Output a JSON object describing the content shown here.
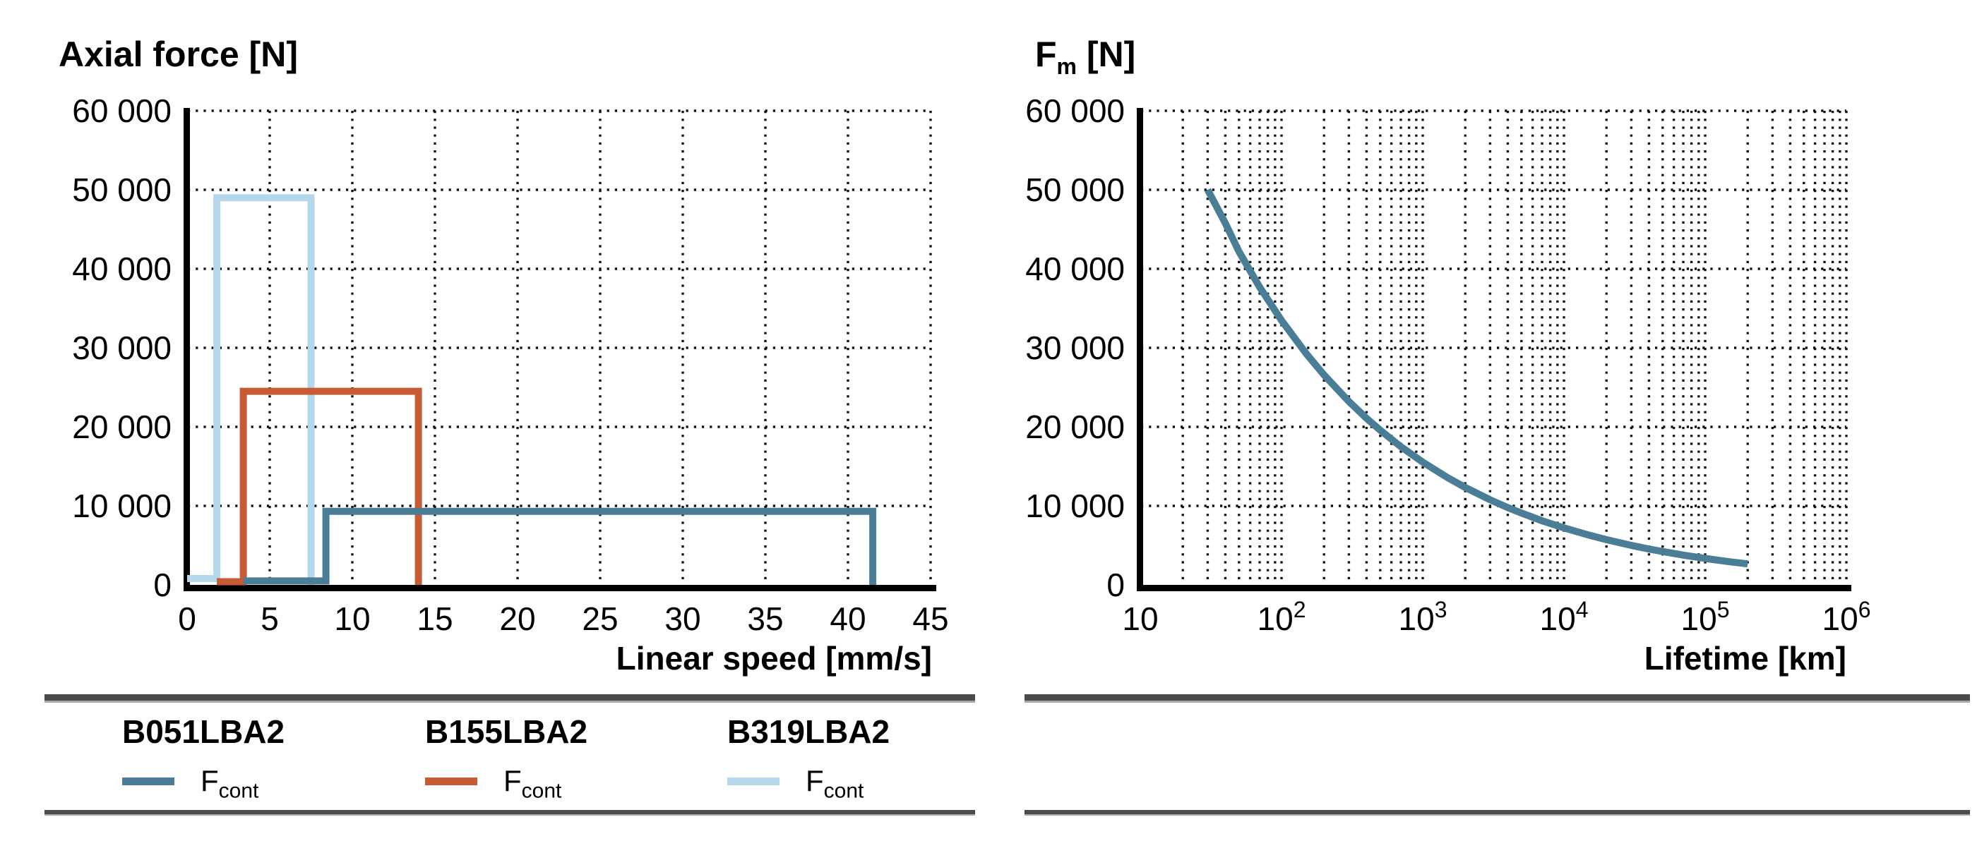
{
  "chart_data": [
    {
      "type": "line",
      "title": "Axial force [N]",
      "x_axis": {
        "scale": "linear",
        "min": 0,
        "max": 45,
        "label": "Linear speed [mm/s]",
        "grid": true,
        "ticks": [
          {
            "v": 0,
            "label": "0"
          },
          {
            "v": 5,
            "label": "5"
          },
          {
            "v": 10,
            "label": "10"
          },
          {
            "v": 15,
            "label": "15"
          },
          {
            "v": 20,
            "label": "20"
          },
          {
            "v": 25,
            "label": "25"
          },
          {
            "v": 30,
            "label": "30"
          },
          {
            "v": 35,
            "label": "35"
          },
          {
            "v": 40,
            "label": "40"
          },
          {
            "v": 45,
            "label": "45"
          }
        ]
      },
      "y_axis": {
        "min": 0,
        "max": 60000,
        "grid": true,
        "ticks": [
          {
            "v": 0,
            "label": "0"
          },
          {
            "v": 10000,
            "label": "10 000"
          },
          {
            "v": 20000,
            "label": "20 000"
          },
          {
            "v": 30000,
            "label": "30 000"
          },
          {
            "v": 40000,
            "label": "40 000"
          },
          {
            "v": 50000,
            "label": "50 000"
          },
          {
            "v": 60000,
            "label": "60 000"
          }
        ]
      },
      "series": [
        {
          "name": "B319LBA2",
          "quantity": "F_cont",
          "color": "#B5D7EB",
          "points": [
            [
              0,
              800
            ],
            [
              1.8,
              800
            ],
            [
              1.8,
              49000
            ],
            [
              7.5,
              49000
            ],
            [
              7.5,
              0
            ]
          ]
        },
        {
          "name": "B155LBA2",
          "quantity": "F_cont",
          "color": "#C75B35",
          "points": [
            [
              1.8,
              400
            ],
            [
              3.4,
              400
            ],
            [
              3.4,
              24500
            ],
            [
              14,
              24500
            ],
            [
              14,
              0
            ]
          ]
        },
        {
          "name": "B051LBA2",
          "quantity": "F_cont",
          "color": "#4A7E96",
          "points": [
            [
              3.4,
              500
            ],
            [
              8.4,
              500
            ],
            [
              8.4,
              9300
            ],
            [
              41.5,
              9300
            ],
            [
              41.5,
              0
            ]
          ]
        }
      ]
    },
    {
      "type": "line",
      "title_main": "F",
      "title_sub": "m",
      "title_unit": " [N]",
      "x_axis": {
        "scale": "log",
        "min": 10,
        "max": 1000000,
        "label": "Lifetime [km]",
        "grid": true,
        "ticks": [
          {
            "exp": 1,
            "base": "10",
            "sup": ""
          },
          {
            "exp": 2,
            "base": "10",
            "sup": "2"
          },
          {
            "exp": 3,
            "base": "10",
            "sup": "3"
          },
          {
            "exp": 4,
            "base": "10",
            "sup": "4"
          },
          {
            "exp": 5,
            "base": "10",
            "sup": "5"
          },
          {
            "exp": 6,
            "base": "10",
            "sup": "6"
          }
        ]
      },
      "y_axis": {
        "min": 0,
        "max": 60000,
        "grid": true,
        "ticks": [
          {
            "v": 0,
            "label": "0"
          },
          {
            "v": 10000,
            "label": "10 000"
          },
          {
            "v": 20000,
            "label": "20 000"
          },
          {
            "v": 30000,
            "label": "30 000"
          },
          {
            "v": 40000,
            "label": "40 000"
          },
          {
            "v": 50000,
            "label": "50 000"
          },
          {
            "v": 60000,
            "label": "60 000"
          }
        ]
      },
      "series": [
        {
          "name": "B051LBA2",
          "quantity": "F_m",
          "color": "#4A7E96",
          "points": [
            [
              30,
              50000
            ],
            [
              40,
              45770
            ],
            [
              50,
              42170
            ],
            [
              70,
              37690
            ],
            [
              100,
              33470
            ],
            [
              150,
              29240
            ],
            [
              200,
              26570
            ],
            [
              300,
              23210
            ],
            [
              400,
              21080
            ],
            [
              500,
              19570
            ],
            [
              700,
              17490
            ],
            [
              1000,
              15540
            ],
            [
              1500,
              13570
            ],
            [
              2000,
              12330
            ],
            [
              3000,
              10770
            ],
            [
              4000,
              9790
            ],
            [
              5000,
              9090
            ],
            [
              7000,
              8120
            ],
            [
              10000,
              7210
            ],
            [
              15000,
              6300
            ],
            [
              20000,
              5720
            ],
            [
              30000,
              5000
            ],
            [
              40000,
              4540
            ],
            [
              50000,
              4220
            ],
            [
              70000,
              3770
            ],
            [
              100000,
              3350
            ],
            [
              150000,
              2920
            ],
            [
              200000,
              2660
            ]
          ]
        }
      ]
    }
  ],
  "legend": {
    "entries": [
      {
        "product": "B051LBA2",
        "symbol": "F",
        "subscript": "cont",
        "color": "#4A7E96"
      },
      {
        "product": "B155LBA2",
        "symbol": "F",
        "subscript": "cont",
        "color": "#C75B35"
      },
      {
        "product": "B319LBA2",
        "symbol": "F",
        "subscript": "cont",
        "color": "#B5D7EB"
      }
    ]
  },
  "colors": {
    "axis": "#000000",
    "grid_dots": "#111111",
    "divider_dark": "#4B4B4B",
    "divider_light": "#A6A6A6"
  }
}
